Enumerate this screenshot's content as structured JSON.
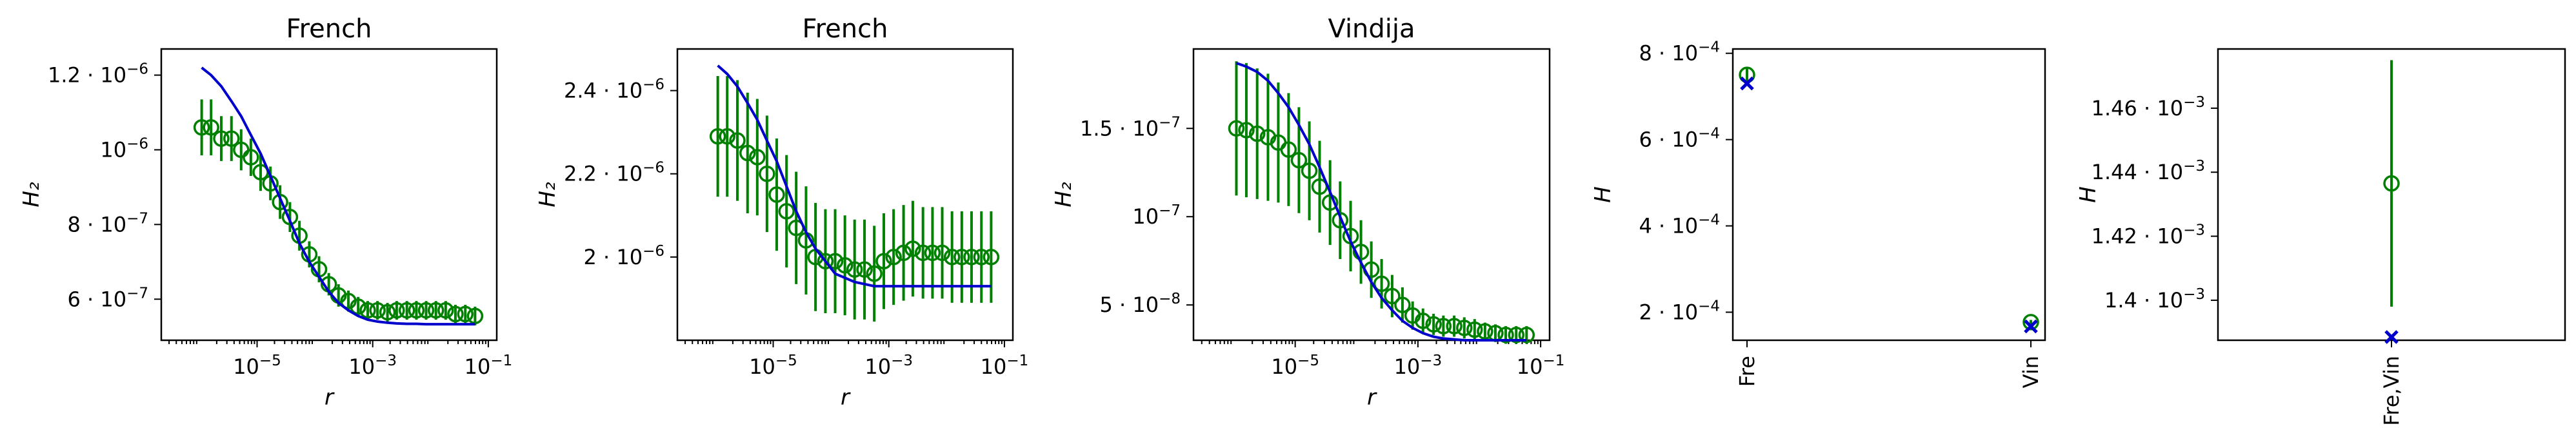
{
  "figure": {
    "background": "#ffffff"
  },
  "colors": {
    "data": "#008000",
    "model": "#0000cc",
    "axes": "#000000"
  },
  "chart_data": [
    {
      "type": "line",
      "title": "French",
      "xlabel": "r",
      "ylabel": "H₂",
      "xscale": "log",
      "xlim": [
        2.2e-07,
        0.14
      ],
      "ylim": [
        4.9e-07,
        1.27e-06
      ],
      "x_ticks": [
        {
          "value": 1e-05,
          "base": "10",
          "exp": "−5"
        },
        {
          "value": 0.001,
          "base": "10",
          "exp": "−3"
        },
        {
          "value": 0.1,
          "base": "10",
          "exp": "−1"
        }
      ],
      "y_ticks": [
        {
          "value": 6e-07,
          "base": "6 · 10",
          "exp": "−7"
        },
        {
          "value": 8e-07,
          "base": "8 · 10",
          "exp": "−7"
        },
        {
          "value": 1e-06,
          "base": "10",
          "exp": "−6"
        },
        {
          "value": 1.2e-06,
          "base": "1.2 · 10",
          "exp": "−6"
        }
      ],
      "series": [
        {
          "kind": "errorbar",
          "marker": "open-circle",
          "color": "#008000",
          "x": [
            1.1e-06,
            1.6e-06,
            2.4e-06,
            3.6e-06,
            5.3e-06,
            7.8e-06,
            1.15e-05,
            1.7e-05,
            2.5e-05,
            3.7e-05,
            5.4e-05,
            8e-05,
            0.000118,
            0.000174,
            0.000256,
            0.00038,
            0.00056,
            0.00082,
            0.00121,
            0.0018,
            0.0026,
            0.0039,
            0.0057,
            0.0084,
            0.0124,
            0.0183,
            0.027,
            0.04,
            0.059
          ],
          "y": [
            1.06e-06,
            1.06e-06,
            1.03e-06,
            1.03e-06,
            1e-06,
            9.8e-07,
            9.4e-07,
            9.1e-07,
            8.6e-07,
            8.2e-07,
            7.7e-07,
            7.2e-07,
            6.8e-07,
            6.4e-07,
            6.1e-07,
            5.95e-07,
            5.8e-07,
            5.7e-07,
            5.7e-07,
            5.65e-07,
            5.7e-07,
            5.7e-07,
            5.7e-07,
            5.7e-07,
            5.7e-07,
            5.7e-07,
            5.6e-07,
            5.6e-07,
            5.55e-07
          ],
          "yerr": [
            7.5e-08,
            7.5e-08,
            6e-08,
            6e-08,
            5.5e-08,
            5e-08,
            5e-08,
            4.5e-08,
            4.5e-08,
            4e-08,
            4e-08,
            3.5e-08,
            3.5e-08,
            3e-08,
            3e-08,
            2.8e-08,
            2.6e-08,
            2.5e-08,
            2.5e-08,
            2.5e-08,
            2.5e-08,
            2.5e-08,
            2.5e-08,
            2.5e-08,
            2.5e-08,
            2.5e-08,
            2.5e-08,
            2.5e-08,
            2.5e-08
          ]
        },
        {
          "kind": "line",
          "color": "#0000cc",
          "x": [
            1.1e-06,
            1.6e-06,
            2.4e-06,
            3.6e-06,
            5.3e-06,
            7.8e-06,
            1.15e-05,
            1.7e-05,
            2.5e-05,
            3.7e-05,
            5.4e-05,
            8e-05,
            0.000118,
            0.000174,
            0.000256,
            0.00038,
            0.00056,
            0.00082,
            0.00121,
            0.0018,
            0.0026,
            0.0039,
            0.0057,
            0.0084,
            0.0124,
            0.0183,
            0.027,
            0.04,
            0.059
          ],
          "y": [
            1.22e-06,
            1.2e-06,
            1.17e-06,
            1.13e-06,
            1.09e-06,
            1.04e-06,
            9.9e-07,
            9.3e-07,
            8.7e-07,
            8.1e-07,
            7.5e-07,
            7e-07,
            6.6e-07,
            6.2e-07,
            5.9e-07,
            5.7e-07,
            5.55e-07,
            5.45e-07,
            5.4e-07,
            5.37e-07,
            5.35e-07,
            5.34e-07,
            5.34e-07,
            5.33e-07,
            5.33e-07,
            5.33e-07,
            5.33e-07,
            5.33e-07,
            5.33e-07
          ]
        }
      ]
    },
    {
      "type": "line",
      "title": "French",
      "xlabel": "r",
      "ylabel": "H₂",
      "xscale": "log",
      "xlim": [
        2.2e-07,
        0.14
      ],
      "ylim": [
        1.8e-06,
        2.5e-06
      ],
      "x_ticks": [
        {
          "value": 1e-05,
          "base": "10",
          "exp": "−5"
        },
        {
          "value": 0.001,
          "base": "10",
          "exp": "−3"
        },
        {
          "value": 0.1,
          "base": "10",
          "exp": "−1"
        }
      ],
      "y_ticks": [
        {
          "value": 2e-06,
          "base": "2 · 10",
          "exp": "−6"
        },
        {
          "value": 2.2e-06,
          "base": "2.2 · 10",
          "exp": "−6"
        },
        {
          "value": 2.4e-06,
          "base": "2.4 · 10",
          "exp": "−6"
        }
      ],
      "series": [
        {
          "kind": "errorbar",
          "marker": "open-circle",
          "color": "#008000",
          "x": [
            1.1e-06,
            1.6e-06,
            2.4e-06,
            3.6e-06,
            5.3e-06,
            7.8e-06,
            1.15e-05,
            1.7e-05,
            2.5e-05,
            3.7e-05,
            5.4e-05,
            8e-05,
            0.000118,
            0.000174,
            0.000256,
            0.00038,
            0.00056,
            0.00082,
            0.00121,
            0.0018,
            0.0026,
            0.0039,
            0.0057,
            0.0084,
            0.0124,
            0.0183,
            0.027,
            0.04,
            0.059
          ],
          "y": [
            2.29e-06,
            2.29e-06,
            2.28e-06,
            2.25e-06,
            2.24e-06,
            2.2e-06,
            2.15e-06,
            2.11e-06,
            2.07e-06,
            2.04e-06,
            2e-06,
            1.99e-06,
            1.99e-06,
            1.98e-06,
            1.97e-06,
            1.97e-06,
            1.96e-06,
            1.99e-06,
            2e-06,
            2.01e-06,
            2.02e-06,
            2.01e-06,
            2.01e-06,
            2.01e-06,
            2e-06,
            2e-06,
            2e-06,
            2e-06,
            2e-06
          ],
          "yerr": [
            1.45e-07,
            1.45e-07,
            1.45e-07,
            1.45e-07,
            1.4e-07,
            1.4e-07,
            1.35e-07,
            1.35e-07,
            1.35e-07,
            1.3e-07,
            1.3e-07,
            1.25e-07,
            1.25e-07,
            1.2e-07,
            1.2e-07,
            1.2e-07,
            1.15e-07,
            1.15e-07,
            1.15e-07,
            1.15e-07,
            1.15e-07,
            1.1e-07,
            1.1e-07,
            1.1e-07,
            1.1e-07,
            1.1e-07,
            1.1e-07,
            1.1e-07,
            1.1e-07
          ]
        },
        {
          "kind": "line",
          "color": "#0000cc",
          "x": [
            1.1e-06,
            1.6e-06,
            2.4e-06,
            3.6e-06,
            5.3e-06,
            7.8e-06,
            1.15e-05,
            1.7e-05,
            2.5e-05,
            3.7e-05,
            5.4e-05,
            8e-05,
            0.000118,
            0.000174,
            0.000256,
            0.00038,
            0.00056,
            0.00082,
            0.00121,
            0.0018,
            0.0026,
            0.0039,
            0.0057,
            0.0084,
            0.0124,
            0.0183,
            0.027,
            0.04,
            0.059
          ],
          "y": [
            2.46e-06,
            2.44e-06,
            2.41e-06,
            2.37e-06,
            2.33e-06,
            2.28e-06,
            2.23e-06,
            2.17e-06,
            2.11e-06,
            2.06e-06,
            2.02e-06,
            1.99e-06,
            1.96e-06,
            1.95e-06,
            1.94e-06,
            1.935e-06,
            1.93e-06,
            1.93e-06,
            1.93e-06,
            1.93e-06,
            1.93e-06,
            1.93e-06,
            1.93e-06,
            1.93e-06,
            1.93e-06,
            1.93e-06,
            1.93e-06,
            1.93e-06,
            1.93e-06
          ]
        }
      ]
    },
    {
      "type": "line",
      "title": "Vindija",
      "xlabel": "r",
      "ylabel": "H₂",
      "xscale": "log",
      "xlim": [
        2.2e-07,
        0.14
      ],
      "ylim": [
        3e-08,
        1.95e-07
      ],
      "x_ticks": [
        {
          "value": 1e-05,
          "base": "10",
          "exp": "−5"
        },
        {
          "value": 0.001,
          "base": "10",
          "exp": "−3"
        },
        {
          "value": 0.1,
          "base": "10",
          "exp": "−1"
        }
      ],
      "y_ticks": [
        {
          "value": 5e-08,
          "base": "5 · 10",
          "exp": "−8"
        },
        {
          "value": 1e-07,
          "base": "10",
          "exp": "−7"
        },
        {
          "value": 1.5e-07,
          "base": "1.5 · 10",
          "exp": "−7"
        }
      ],
      "series": [
        {
          "kind": "errorbar",
          "marker": "open-circle",
          "color": "#008000",
          "x": [
            1.1e-06,
            1.6e-06,
            2.4e-06,
            3.6e-06,
            5.3e-06,
            7.8e-06,
            1.15e-05,
            1.7e-05,
            2.5e-05,
            3.7e-05,
            5.4e-05,
            8e-05,
            0.000118,
            0.000174,
            0.000256,
            0.00038,
            0.00056,
            0.00082,
            0.00121,
            0.0018,
            0.0026,
            0.0039,
            0.0057,
            0.0084,
            0.0124,
            0.0183,
            0.027,
            0.04,
            0.059
          ],
          "y": [
            1.5e-07,
            1.49e-07,
            1.47e-07,
            1.45e-07,
            1.42e-07,
            1.38e-07,
            1.32e-07,
            1.26e-07,
            1.17e-07,
            1.08e-07,
            9.8e-08,
            8.9e-08,
            8e-08,
            7e-08,
            6.2e-08,
            5.5e-08,
            5e-08,
            4.4e-08,
            4.1e-08,
            3.9e-08,
            3.8e-08,
            3.8e-08,
            3.7e-08,
            3.6e-08,
            3.5e-08,
            3.4e-08,
            3.3e-08,
            3.3e-08,
            3.3e-08
          ],
          "yerr": [
            3.8e-08,
            3.8e-08,
            3.7e-08,
            3.6e-08,
            3.4e-08,
            3.2e-08,
            3e-08,
            2.8e-08,
            2.6e-08,
            2.4e-08,
            2.2e-08,
            2e-08,
            1.8e-08,
            1.6e-08,
            1.4e-08,
            1.2e-08,
            1e-08,
            8e-09,
            7e-09,
            6e-09,
            6e-09,
            6e-09,
            6e-09,
            6e-09,
            5e-09,
            5e-09,
            5e-09,
            5e-09,
            5e-09
          ]
        },
        {
          "kind": "line",
          "color": "#0000cc",
          "x": [
            1.1e-06,
            1.6e-06,
            2.4e-06,
            3.6e-06,
            5.3e-06,
            7.8e-06,
            1.15e-05,
            1.7e-05,
            2.5e-05,
            3.7e-05,
            5.4e-05,
            8e-05,
            0.000118,
            0.000174,
            0.000256,
            0.00038,
            0.00056,
            0.00082,
            0.00121,
            0.0018,
            0.0026,
            0.0039,
            0.0057,
            0.0084,
            0.0124,
            0.0183,
            0.027,
            0.04,
            0.059
          ],
          "y": [
            1.87e-07,
            1.85e-07,
            1.82e-07,
            1.77e-07,
            1.7e-07,
            1.62e-07,
            1.52e-07,
            1.41e-07,
            1.28e-07,
            1.14e-07,
            1e-07,
            8.6e-08,
            7.4e-08,
            6.3e-08,
            5.4e-08,
            4.7e-08,
            4.1e-08,
            3.7e-08,
            3.4e-08,
            3.2e-08,
            3.1e-08,
            3.05e-08,
            3e-08,
            3e-08,
            3e-08,
            3e-08,
            3e-08,
            3e-08,
            3e-08
          ]
        }
      ]
    },
    {
      "type": "scatter",
      "title": "",
      "xlabel": "",
      "ylabel": "H",
      "categories": [
        "Fre",
        "Vin"
      ],
      "xlim": [
        -0.05,
        1.05
      ],
      "ylim": [
        0.000135,
        0.00081
      ],
      "y_ticks": [
        {
          "value": 0.0002,
          "base": "2 · 10",
          "exp": "−4"
        },
        {
          "value": 0.0004,
          "base": "4 · 10",
          "exp": "−4"
        },
        {
          "value": 0.0006,
          "base": "6 · 10",
          "exp": "−4"
        },
        {
          "value": 0.0008,
          "base": "8 · 10",
          "exp": "−4"
        }
      ],
      "series": [
        {
          "kind": "errorbar",
          "marker": "open-circle",
          "color": "#008000",
          "y": [
            0.00075,
            0.000177
          ],
          "yerr": [
            1.5e-05,
            5e-06
          ]
        },
        {
          "kind": "points",
          "marker": "x",
          "color": "#0000cc",
          "y": [
            0.00073,
            0.000167
          ]
        }
      ]
    },
    {
      "type": "scatter",
      "title": "",
      "xlabel": "",
      "ylabel": "H",
      "categories": [
        "Fre,Vin"
      ],
      "xlim": [
        -1,
        1
      ],
      "ylim": [
        0.0013875,
        0.0014785
      ],
      "y_ticks": [
        {
          "value": 0.0014,
          "base": "1.4 · 10",
          "exp": "−3"
        },
        {
          "value": 0.00142,
          "base": "1.42 · 10",
          "exp": "−3"
        },
        {
          "value": 0.00144,
          "base": "1.44 · 10",
          "exp": "−3"
        },
        {
          "value": 0.00146,
          "base": "1.46 · 10",
          "exp": "−3"
        }
      ],
      "series": [
        {
          "kind": "errorbar",
          "marker": "open-circle",
          "color": "#008000",
          "y": [
            0.0014365
          ],
          "yerr": [
            3.85e-05
          ]
        },
        {
          "kind": "points",
          "marker": "x",
          "color": "#0000cc",
          "y": [
            0.0013885
          ]
        }
      ]
    }
  ]
}
